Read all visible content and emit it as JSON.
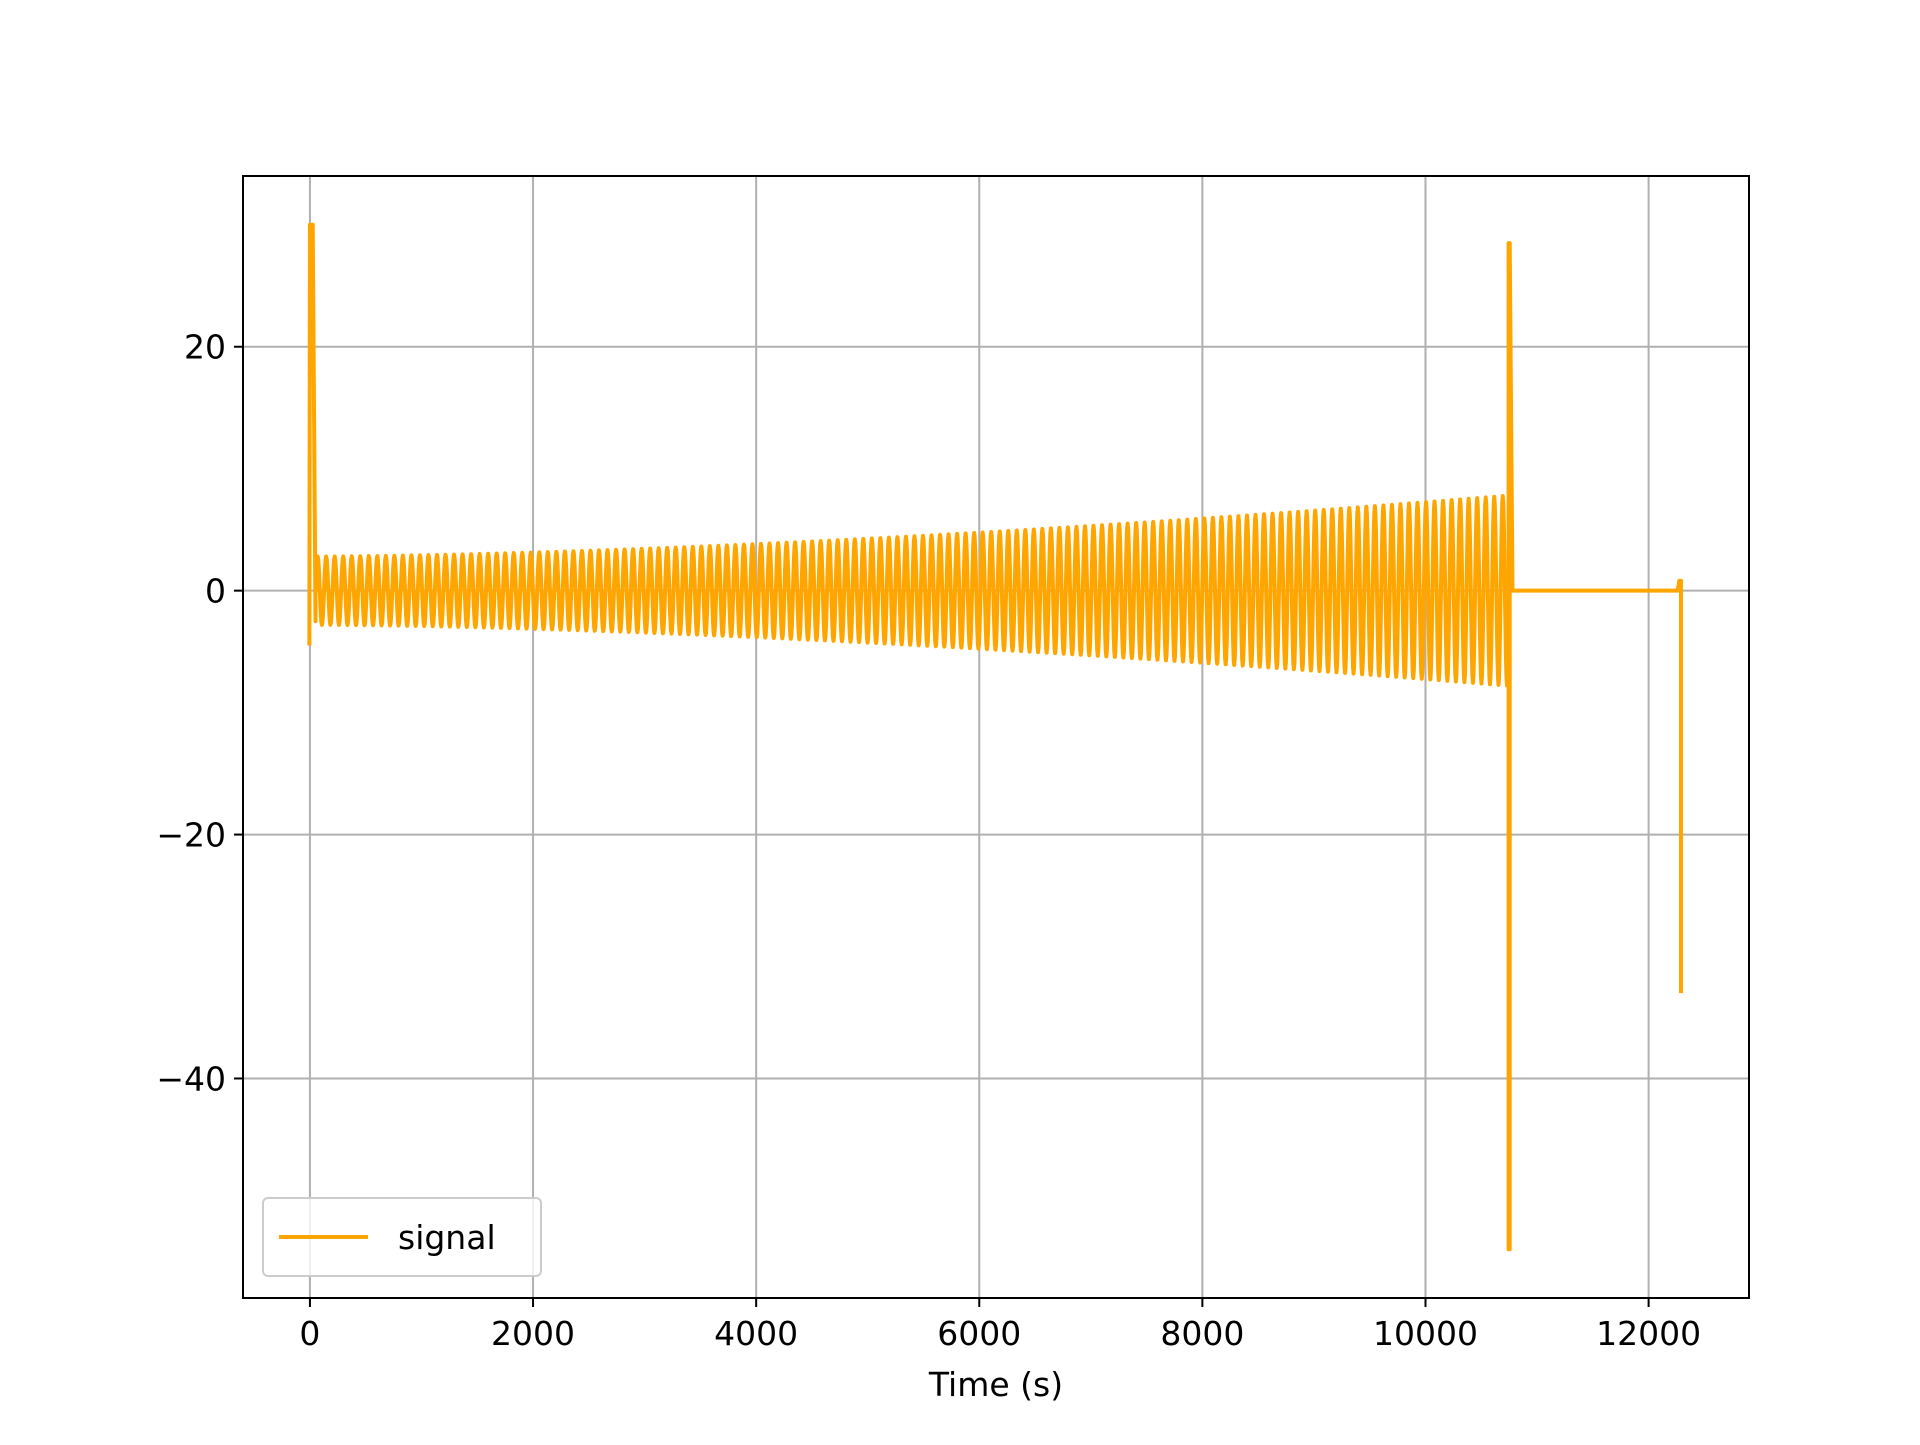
{
  "chart_data": {
    "type": "line",
    "title": "",
    "xlabel": "Time (s)",
    "ylabel": "",
    "xlim": [
      -600,
      12900
    ],
    "ylim": [
      -58,
      34
    ],
    "grid": true,
    "x_ticks": [
      0,
      2000,
      4000,
      6000,
      8000,
      10000,
      12000
    ],
    "y_ticks": [
      -40,
      -20,
      0,
      20
    ],
    "x_tick_labels": [
      "0",
      "2000",
      "4000",
      "6000",
      "8000",
      "10000",
      "12000"
    ],
    "y_tick_labels": [
      "−40",
      "−20",
      "0",
      "20"
    ],
    "legend": {
      "position": "lower-left",
      "entries": [
        "signal"
      ]
    },
    "series": [
      {
        "name": "signal",
        "color": "#FFA500",
        "description_points": {
          "initial_spike": {
            "x": 0,
            "y_max": 30,
            "y_min": -4.5
          },
          "oscillation": {
            "x_start": 50,
            "x_end": 10750,
            "cycles": 140,
            "amplitude_start": 2.8,
            "amplitude_end": 7.8
          },
          "second_spike": {
            "x": 10750,
            "y_max": 28.5,
            "y_min": -54
          },
          "flat_segment": {
            "x_start": 10780,
            "x_end": 12260,
            "y": 0
          },
          "final_drop": {
            "x": 12290,
            "y_top": 0.8,
            "y_bottom": -33
          }
        }
      }
    ]
  }
}
